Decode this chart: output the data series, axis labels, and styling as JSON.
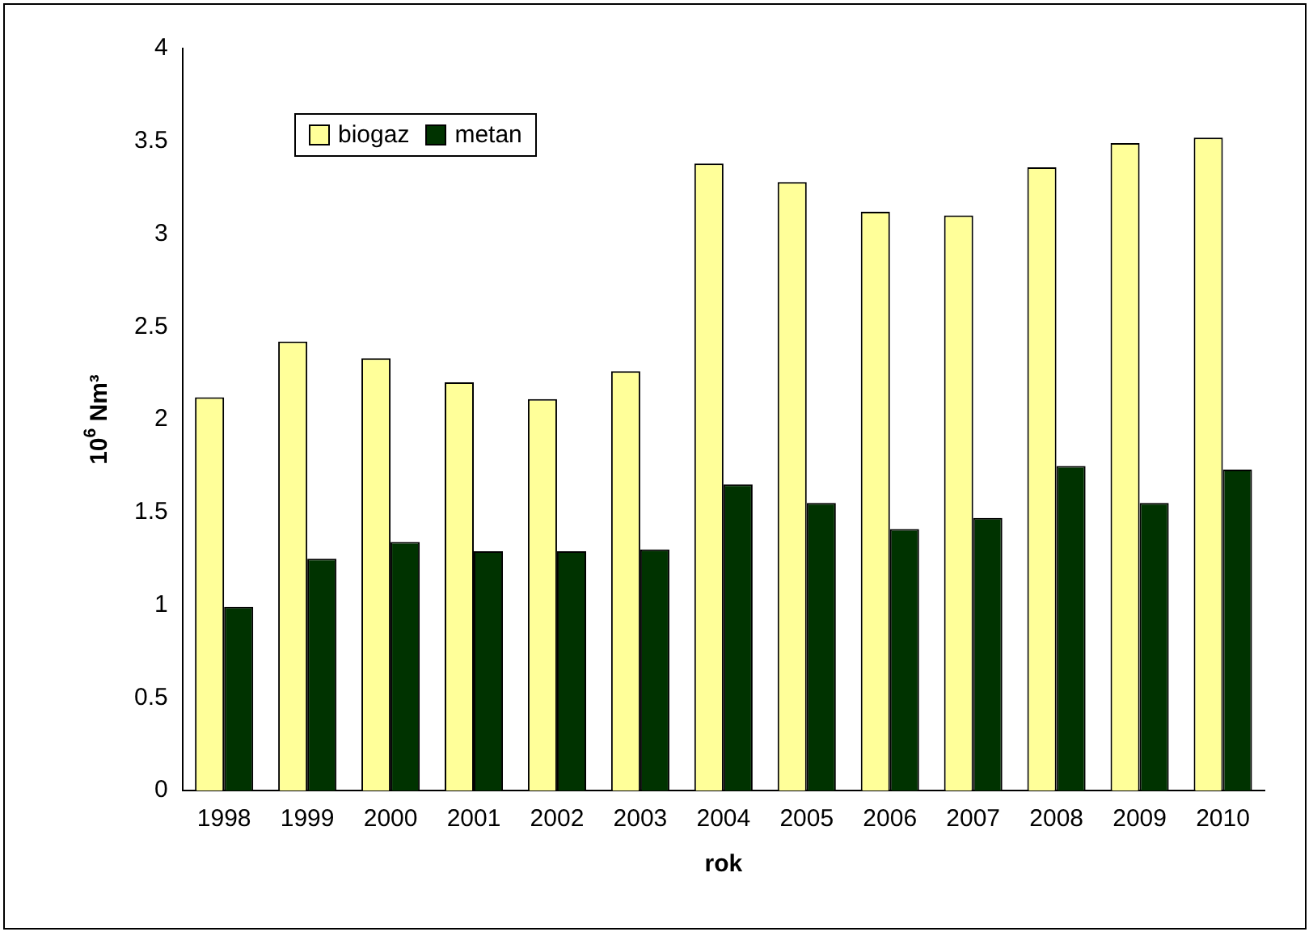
{
  "chart_data": {
    "type": "bar",
    "xlabel": "rok",
    "ylabel": "10$^{6}$ Nm³",
    "categories": [
      "1998",
      "1999",
      "2000",
      "2001",
      "2002",
      "2003",
      "2004",
      "2005",
      "2006",
      "2007",
      "2008",
      "2009",
      "2010"
    ],
    "series": [
      {
        "name": "biogaz",
        "color": "#ffff99",
        "values": [
          2.12,
          2.42,
          2.33,
          2.2,
          2.11,
          2.26,
          3.38,
          3.28,
          3.12,
          3.1,
          3.36,
          3.49,
          3.52
        ]
      },
      {
        "name": "metan",
        "color": "#003300",
        "values": [
          0.99,
          1.25,
          1.34,
          1.29,
          1.29,
          1.3,
          1.65,
          1.55,
          1.41,
          1.47,
          1.75,
          1.55,
          1.73
        ]
      }
    ],
    "ylim": [
      0,
      4
    ],
    "yticks": [
      0,
      0.5,
      1,
      1.5,
      2,
      2.5,
      3,
      3.5,
      4
    ],
    "grid": false,
    "legend": "top left"
  }
}
